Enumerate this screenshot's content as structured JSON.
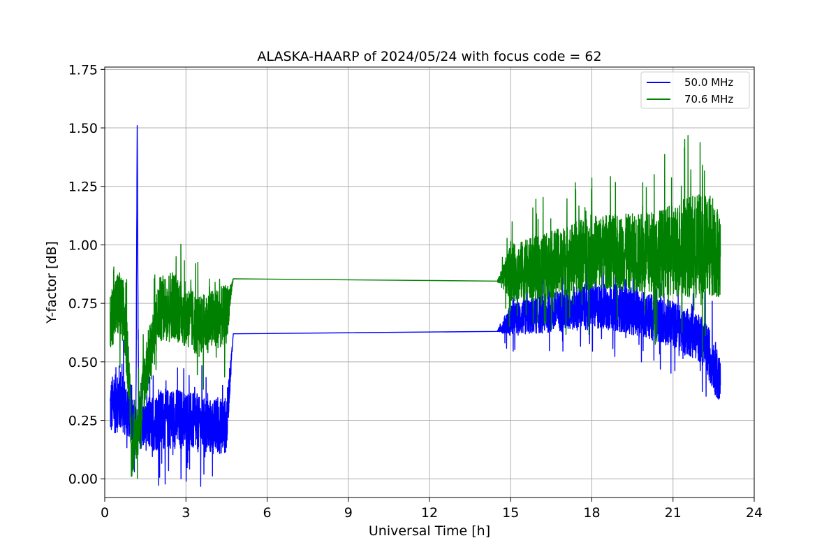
{
  "chart_data": {
    "type": "line",
    "title": "ALASKA-HAARP of 2024/05/24 with focus code = 62",
    "xlabel": "Universal Time [h]",
    "ylabel": "Y-factor [dB]",
    "xlim": [
      0,
      24
    ],
    "ylim": [
      -0.08,
      1.76
    ],
    "xticks": [
      0,
      3,
      6,
      9,
      12,
      15,
      18,
      21,
      24
    ],
    "xtick_labels": [
      "0",
      "3",
      "6",
      "9",
      "12",
      "15",
      "18",
      "21",
      "24"
    ],
    "yticks": [
      0.0,
      0.25,
      0.5,
      0.75,
      1.0,
      1.25,
      1.5,
      1.75
    ],
    "ytick_labels": [
      "0.00",
      "0.25",
      "0.50",
      "0.75",
      "1.00",
      "1.25",
      "1.50",
      "1.75"
    ],
    "grid": true,
    "legend_position": "upper-right",
    "series": [
      {
        "name": "50.0 MHz",
        "color": "#0000ff",
        "x": [
          0.2,
          0.5,
          0.8,
          1.0,
          1.15,
          1.2,
          1.25,
          1.5,
          2.0,
          2.5,
          3.0,
          3.5,
          4.0,
          4.5,
          4.75,
          14.5,
          15.0,
          16.0,
          17.0,
          18.0,
          19.0,
          20.0,
          21.0,
          22.0,
          22.5,
          22.75
        ],
        "y": [
          0.3,
          0.35,
          0.3,
          0.28,
          0.2,
          1.51,
          0.25,
          0.22,
          0.25,
          0.26,
          0.25,
          0.23,
          0.22,
          0.23,
          0.62,
          0.63,
          0.68,
          0.7,
          0.72,
          0.74,
          0.73,
          0.7,
          0.66,
          0.6,
          0.5,
          0.4
        ],
        "band": [
          0.12,
          0.15,
          0.12,
          0.12,
          0.1,
          0.0,
          0.12,
          0.1,
          0.13,
          0.13,
          0.13,
          0.12,
          0.12,
          0.12,
          0.0,
          0.0,
          0.07,
          0.08,
          0.09,
          0.1,
          0.1,
          0.1,
          0.1,
          0.1,
          0.12,
          0.1
        ]
      },
      {
        "name": "70.6 MHz",
        "color": "#008000",
        "x": [
          0.2,
          0.5,
          0.7,
          0.9,
          1.0,
          1.2,
          1.5,
          1.8,
          2.0,
          2.5,
          3.0,
          3.5,
          4.0,
          4.5,
          4.75,
          14.5,
          15.0,
          16.0,
          17.0,
          18.0,
          19.0,
          20.0,
          21.0,
          21.5,
          22.0,
          22.5,
          22.75
        ],
        "y": [
          0.68,
          0.75,
          0.7,
          0.45,
          0.1,
          0.2,
          0.45,
          0.6,
          0.72,
          0.75,
          0.7,
          0.65,
          0.68,
          0.7,
          0.855,
          0.845,
          0.88,
          0.9,
          0.93,
          0.97,
          0.97,
          0.96,
          0.97,
          1.0,
          0.98,
          1.0,
          0.95
        ],
        "band": [
          0.12,
          0.15,
          0.15,
          0.12,
          0.08,
          0.12,
          0.13,
          0.14,
          0.14,
          0.15,
          0.14,
          0.13,
          0.13,
          0.13,
          0.0,
          0.0,
          0.12,
          0.14,
          0.15,
          0.16,
          0.16,
          0.18,
          0.2,
          0.22,
          0.24,
          0.22,
          0.18
        ]
      }
    ]
  }
}
